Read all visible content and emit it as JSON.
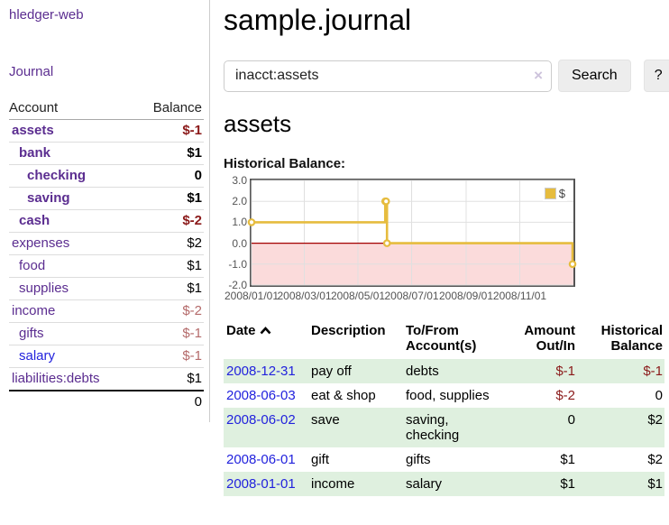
{
  "sidebar": {
    "brand": "hledger-web",
    "nav_journal": "Journal",
    "accounts": {
      "headers": {
        "account": "Account",
        "balance": "Balance"
      },
      "rows": [
        {
          "name": "assets",
          "depth": 1,
          "bold": true,
          "link": "purple",
          "balance": "$-1",
          "bal_class": "neg"
        },
        {
          "name": "bank",
          "depth": 2,
          "bold": true,
          "link": "purple",
          "balance": "$1",
          "bal_class": ""
        },
        {
          "name": "checking",
          "depth": 3,
          "bold": true,
          "link": "purple",
          "balance": "0",
          "bal_class": ""
        },
        {
          "name": "saving",
          "depth": 3,
          "bold": true,
          "link": "purple",
          "balance": "$1",
          "bal_class": ""
        },
        {
          "name": "cash",
          "depth": 2,
          "bold": true,
          "link": "purple",
          "balance": "$-2",
          "bal_class": "neg"
        },
        {
          "name": "expenses",
          "depth": 1,
          "bold": false,
          "link": "purple",
          "balance": "$2",
          "bal_class": ""
        },
        {
          "name": "food",
          "depth": 2,
          "bold": false,
          "link": "purple",
          "balance": "$1",
          "bal_class": ""
        },
        {
          "name": "supplies",
          "depth": 2,
          "bold": false,
          "link": "purple",
          "balance": "$1",
          "bal_class": ""
        },
        {
          "name": "income",
          "depth": 1,
          "bold": false,
          "link": "purple",
          "balance": "$-2",
          "bal_class": "neg-light"
        },
        {
          "name": "gifts",
          "depth": 2,
          "bold": false,
          "link": "purple",
          "balance": "$-1",
          "bal_class": "neg-light"
        },
        {
          "name": "salary",
          "depth": 2,
          "bold": false,
          "link": "blue",
          "balance": "$-1",
          "bal_class": "neg-light"
        },
        {
          "name": "liabilities:debts",
          "depth": 1,
          "bold": false,
          "link": "purple",
          "balance": "$1",
          "bal_class": ""
        }
      ],
      "total": "0"
    }
  },
  "main": {
    "title": "sample.journal",
    "search": {
      "value": "inacct:assets",
      "clear_icon": "×",
      "button": "Search",
      "help_button": "?"
    },
    "account_heading": "assets",
    "chart_label": "Historical Balance:",
    "table": {
      "headers": {
        "date": "Date",
        "description": "Description",
        "tofrom": "To/From Account(s)",
        "amount": "Amount Out/In",
        "historical": "Historical Balance"
      },
      "rows": [
        {
          "date": "2008-12-31",
          "description": "pay off",
          "accounts": "debts",
          "amount": "$-1",
          "amount_neg": true,
          "balance": "$-1",
          "balance_neg": true,
          "shade": true
        },
        {
          "date": "2008-06-03",
          "description": "eat & shop",
          "accounts": "food, supplies",
          "amount": "$-2",
          "amount_neg": true,
          "balance": "0",
          "balance_neg": false,
          "shade": false
        },
        {
          "date": "2008-06-02",
          "description": "save",
          "accounts": "saving, checking",
          "amount": "0",
          "amount_neg": false,
          "balance": "$2",
          "balance_neg": false,
          "shade": true
        },
        {
          "date": "2008-06-01",
          "description": "gift",
          "accounts": "gifts",
          "amount": "$1",
          "amount_neg": false,
          "balance": "$2",
          "balance_neg": false,
          "shade": false
        },
        {
          "date": "2008-01-01",
          "description": "income",
          "accounts": "salary",
          "amount": "$1",
          "amount_neg": false,
          "balance": "$1",
          "balance_neg": false,
          "shade": true
        }
      ]
    }
  },
  "chart_data": {
    "type": "line",
    "title": "Historical Balance",
    "step": true,
    "legend": [
      {
        "label": "$",
        "color": "#e6bc3e"
      }
    ],
    "series": [
      {
        "name": "$",
        "points": [
          {
            "date": "2008-01-01",
            "day": 0,
            "value": 1
          },
          {
            "date": "2008-06-01",
            "day": 152,
            "value": 2
          },
          {
            "date": "2008-06-02",
            "day": 153,
            "value": 2
          },
          {
            "date": "2008-06-03",
            "day": 154,
            "value": 0
          },
          {
            "date": "2008-12-31",
            "day": 365,
            "value": -1
          }
        ]
      }
    ],
    "x_ticks": [
      {
        "label": "2008/01/01",
        "day": 0
      },
      {
        "label": "2008/03/01",
        "day": 60
      },
      {
        "label": "2008/05/01",
        "day": 121
      },
      {
        "label": "2008/07/01",
        "day": 182
      },
      {
        "label": "2008/09/01",
        "day": 244
      },
      {
        "label": "2008/11/01",
        "day": 305
      }
    ],
    "x_domain_days": [
      0,
      366
    ],
    "y_ticks": [
      "3.0",
      "2.0",
      "1.0",
      "0.0",
      "-1.0",
      "-2.0"
    ],
    "ylim": [
      -2,
      3
    ],
    "grid": true,
    "legend_position": "top-right",
    "colors": {
      "line": "#e6bc3e",
      "point_fill": "#ffffff",
      "below_zero_fill": "#fbdbdb",
      "zero_line": "#a40000",
      "grid": "#e0e0e0",
      "border": "#545454"
    }
  }
}
